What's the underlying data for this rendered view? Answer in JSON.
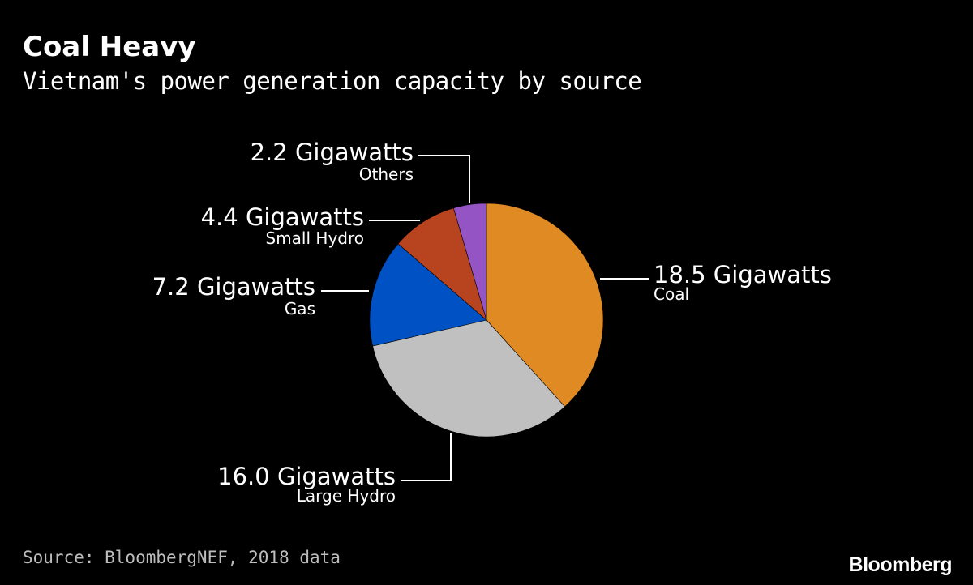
{
  "header": {
    "title": "Coal Heavy",
    "subtitle": "Vietnam's power generation capacity by source"
  },
  "footer": {
    "source": "Source: BloombergNEF, 2018 data",
    "brand": "Bloomberg"
  },
  "chart_data": {
    "type": "pie",
    "title": "Coal Heavy",
    "subtitle": "Vietnam's power generation capacity by source",
    "unit": "Gigawatts",
    "start_angle_deg": 0,
    "direction": "clockwise",
    "slices": [
      {
        "name": "Coal",
        "value": 18.5,
        "value_label": "18.5 Gigawatts",
        "color": "#e08a24"
      },
      {
        "name": "Large Hydro",
        "value": 16.0,
        "value_label": "16.0 Gigawatts",
        "color": "#c0c0c0"
      },
      {
        "name": "Gas",
        "value": 7.2,
        "value_label": "7.2 Gigawatts",
        "color": "#0052c4"
      },
      {
        "name": "Small Hydro",
        "value": 4.4,
        "value_label": "4.4 Gigawatts",
        "color": "#b8431f"
      },
      {
        "name": "Others",
        "value": 2.2,
        "value_label": "2.2 Gigawatts",
        "color": "#9554c4"
      }
    ]
  }
}
